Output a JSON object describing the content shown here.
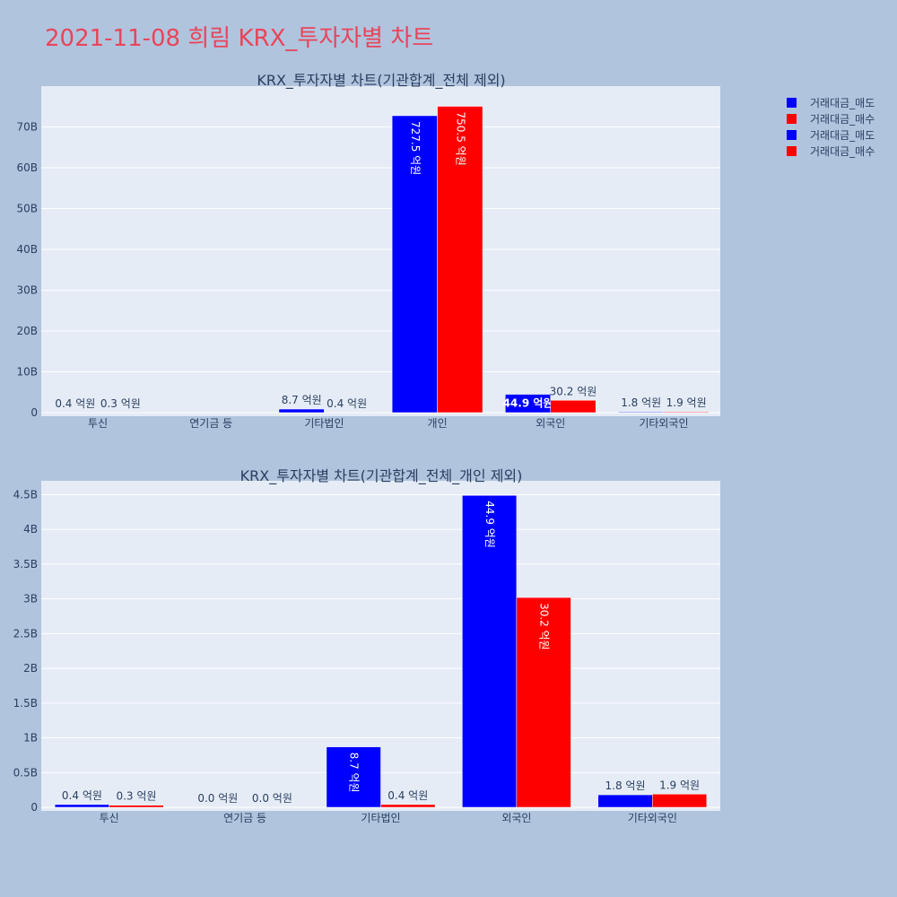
{
  "page_title": "2021-11-08 희림 KRX_투자자별 차트",
  "colors": {
    "sell": "#0000ff",
    "buy": "#ff0000",
    "plot_bg": "#e5ecf6",
    "page_bg": "#b0c4de",
    "title": "#e8455a"
  },
  "legend": {
    "placement": "top-right",
    "items": [
      {
        "label": "거래대금_매도",
        "color": "#0000ff"
      },
      {
        "label": "거래대금_매수",
        "color": "#ff0000"
      },
      {
        "label": "거래대금_매도",
        "color": "#0000ff"
      },
      {
        "label": "거래대금_매수",
        "color": "#ff0000"
      }
    ]
  },
  "chart_data": [
    {
      "type": "bar",
      "title": "KRX_투자자별 차트(기관합계_전체 제외)",
      "categories": [
        "투신",
        "연기금 등",
        "기타법인",
        "개인",
        "외국인",
        "기타외국인"
      ],
      "series": [
        {
          "name": "거래대금_매도",
          "color": "#0000ff",
          "values": [
            0.04,
            null,
            0.87,
            72.75,
            4.49,
            0.18
          ],
          "labels": [
            "0.4 억원",
            "",
            "8.7 억원",
            "727.5 억원",
            "44.9 억원",
            "1.8 억원"
          ]
        },
        {
          "name": "거래대금_매수",
          "color": "#ff0000",
          "values": [
            0.03,
            null,
            0.04,
            75.05,
            3.02,
            0.19
          ],
          "labels": [
            "0.3 억원",
            "",
            "0.4 억원",
            "750.5 억원",
            "30.2 억원",
            "1.9 억원"
          ]
        }
      ],
      "ylim": [
        0,
        80
      ],
      "yticks": [
        0,
        10,
        20,
        30,
        40,
        50,
        60,
        70
      ],
      "ytick_labels": [
        "0",
        "10B",
        "20B",
        "30B",
        "40B",
        "50B",
        "60B",
        "70B"
      ],
      "grid": true
    },
    {
      "type": "bar",
      "title": "KRX_투자자별 차트(기관합계_전체_개인 제외)",
      "categories": [
        "투신",
        "연기금 등",
        "기타법인",
        "외국인",
        "기타외국인"
      ],
      "series": [
        {
          "name": "거래대금_매도",
          "color": "#0000ff",
          "values": [
            0.04,
            0.0,
            0.87,
            4.49,
            0.18
          ],
          "labels": [
            "0.4 억원",
            "0.0 억원",
            "8.7 억원",
            "44.9 억원",
            "1.8 억원"
          ]
        },
        {
          "name": "거래대금_매수",
          "color": "#ff0000",
          "values": [
            0.03,
            0.0,
            0.04,
            3.02,
            0.19
          ],
          "labels": [
            "0.3 억원",
            "0.0 억원",
            "0.4 억원",
            "30.2 억원",
            "1.9 억원"
          ]
        }
      ],
      "ylim": [
        0,
        4.7
      ],
      "yticks": [
        0,
        0.5,
        1,
        1.5,
        2,
        2.5,
        3,
        3.5,
        4,
        4.5
      ],
      "ytick_labels": [
        "0",
        "0.5B",
        "1B",
        "1.5B",
        "2B",
        "2.5B",
        "3B",
        "3.5B",
        "4B",
        "4.5B"
      ],
      "grid": true
    }
  ]
}
